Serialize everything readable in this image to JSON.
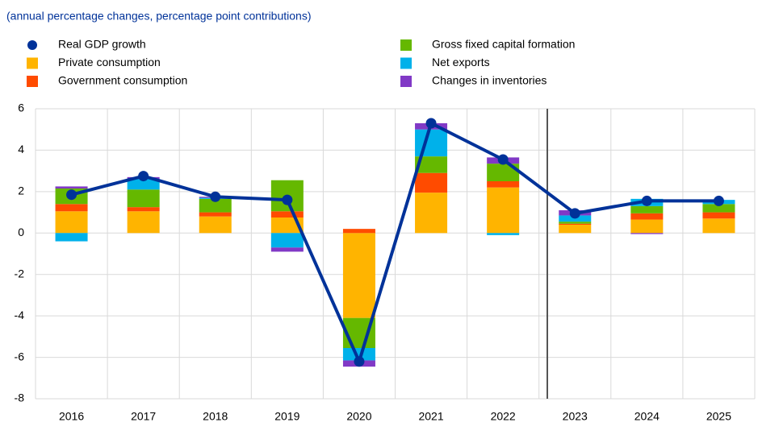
{
  "chart_data": {
    "type": "bar",
    "subtitle": "(annual percentage changes, percentage point contributions)",
    "categories": [
      "2016",
      "2017",
      "2018",
      "2019",
      "2020",
      "2021",
      "2022",
      "2023",
      "2024",
      "2025"
    ],
    "series": [
      {
        "name": "Real GDP growth",
        "type": "line",
        "color": "#003299",
        "values": [
          1.85,
          2.75,
          1.75,
          1.6,
          -6.2,
          5.3,
          3.55,
          0.95,
          1.55,
          1.55
        ]
      },
      {
        "name": "Private consumption",
        "color": "#ffb400",
        "values": [
          1.05,
          1.05,
          0.8,
          0.75,
          -4.1,
          1.95,
          2.2,
          0.4,
          0.65,
          0.7
        ]
      },
      {
        "name": "Government consumption",
        "color": "#ff4b00",
        "values": [
          0.35,
          0.2,
          0.2,
          0.3,
          0.2,
          0.95,
          0.3,
          0.05,
          0.3,
          0.3
        ]
      },
      {
        "name": "Gross fixed capital formation",
        "color": "#65b800",
        "values": [
          0.75,
          0.85,
          0.65,
          1.5,
          -1.45,
          0.8,
          0.85,
          0.1,
          0.35,
          0.4
        ]
      },
      {
        "name": "Net exports",
        "color": "#00b1ea",
        "values": [
          -0.4,
          0.5,
          0.05,
          -0.7,
          -0.6,
          1.3,
          -0.1,
          0.3,
          0.35,
          0.2
        ]
      },
      {
        "name": "Changes in inventories",
        "color": "#8139c6",
        "values": [
          0.1,
          0.1,
          0.05,
          -0.2,
          -0.3,
          0.3,
          0.3,
          0.25,
          -0.05,
          0.0
        ]
      }
    ],
    "ylim": [
      -8,
      6
    ],
    "yticks": [
      -8,
      -6,
      -4,
      -2,
      0,
      2,
      4,
      6
    ],
    "grid": true
  }
}
